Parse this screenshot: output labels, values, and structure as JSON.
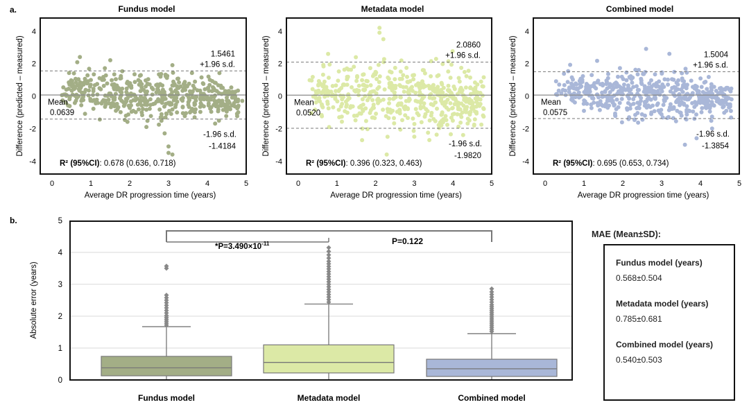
{
  "panel_a_label": "a.",
  "panel_b_label": "b.",
  "bland_altman": {
    "ylabel": "Difference (predicted – measured)",
    "xlabel": "Average DR progression time (years)",
    "xticks": [
      "0",
      "1",
      "2",
      "3",
      "4",
      "5"
    ],
    "yticks": [
      "4",
      "2",
      "0",
      "-2",
      "-4"
    ],
    "mean_label": "Mean",
    "upper_label": "+1.96 s.d.",
    "lower_label": "-1.96 s.d.",
    "r2_label": "R² (95%CI)"
  },
  "chart_data": [
    {
      "type": "scatter",
      "title": "Fundus model",
      "color": "#a3ae86",
      "xlim": [
        0,
        5
      ],
      "ylim": [
        -4.8,
        4.8
      ],
      "mean": 0.0639,
      "mean_text": "0.0639",
      "upper_loa": 1.5461,
      "upper_text": "1.5461",
      "lower_loa": -1.4184,
      "lower_text": "-1.4184",
      "r2_text": ": 0.678 (0.636, 0.718)",
      "seed": 11,
      "spread": 0.78,
      "sample_points": [
        {
          "x": 1.5,
          "y": 2.2
        },
        {
          "x": 3.1,
          "y": 1.9
        },
        {
          "x": 3.0,
          "y": -3.1
        },
        {
          "x": 3.1,
          "y": -3.6
        },
        {
          "x": 3.0,
          "y": -3.5
        },
        {
          "x": 2.9,
          "y": -2.3
        },
        {
          "x": 4.2,
          "y": -1.7
        },
        {
          "x": 4.9,
          "y": -0.3
        }
      ]
    },
    {
      "type": "scatter",
      "title": "Metadata model",
      "color": "#dce9a6",
      "xlim": [
        0,
        5
      ],
      "ylim": [
        -4.8,
        4.8
      ],
      "mean": 0.052,
      "mean_text": "0.0520",
      "upper_loa": 2.086,
      "upper_text": "2.0860",
      "lower_loa": -1.982,
      "lower_text": "-1.9820",
      "r2_text": ": 0.396 (0.323, 0.463)",
      "seed": 23,
      "spread": 1.05,
      "sample_points": [
        {
          "x": 2.1,
          "y": 4.2
        },
        {
          "x": 2.1,
          "y": 3.9
        },
        {
          "x": 2.2,
          "y": 3.5
        },
        {
          "x": 3.0,
          "y": -2.5
        },
        {
          "x": 3.7,
          "y": -1.8
        },
        {
          "x": 4.7,
          "y": -0.2
        }
      ]
    },
    {
      "type": "scatter",
      "title": "Combined model",
      "color": "#a9b7d8",
      "xlim": [
        0,
        5
      ],
      "ylim": [
        -4.8,
        4.8
      ],
      "mean": 0.0575,
      "mean_text": "0.0575",
      "upper_loa": 1.5004,
      "upper_text": "1.5004",
      "lower_loa": -1.3854,
      "lower_text": "-1.3854",
      "r2_text": ": 0.695 (0.653, 0.734)",
      "seed": 37,
      "spread": 0.72,
      "sample_points": [
        {
          "x": 2.6,
          "y": 2.9
        },
        {
          "x": 3.2,
          "y": 2.6
        },
        {
          "x": 3.6,
          "y": -3.0
        },
        {
          "x": 3.9,
          "y": -2.6
        },
        {
          "x": 4.3,
          "y": -2.0
        },
        {
          "x": 4.8,
          "y": -0.2
        }
      ]
    },
    {
      "type": "box",
      "ylabel": "Absolute error (years)",
      "ylim": [
        0,
        5
      ],
      "yticks": [
        "0",
        "1",
        "2",
        "3",
        "4",
        "5"
      ],
      "categories": [
        "Fundus model",
        "Metadata model",
        "Combined model"
      ],
      "colors": [
        "#a3ae86",
        "#dce9a6",
        "#a9b7d8"
      ],
      "boxes": [
        {
          "q1": 0.13,
          "median": 0.38,
          "q3": 0.74,
          "whisker_low": 0,
          "whisker_high": 1.67,
          "outliers": [
            1.72,
            1.78,
            1.84,
            1.9,
            1.96,
            2.02,
            2.1,
            2.18,
            2.26,
            2.34,
            2.42,
            2.5,
            2.58,
            2.66,
            3.5,
            3.57
          ]
        },
        {
          "q1": 0.22,
          "median": 0.55,
          "q3": 1.1,
          "whisker_low": 0,
          "whisker_high": 2.38,
          "outliers": [
            2.44,
            2.52,
            2.6,
            2.68,
            2.76,
            2.84,
            2.92,
            3.0,
            3.08,
            3.16,
            3.24,
            3.32,
            3.4,
            3.48,
            3.56,
            3.64,
            3.72,
            3.82,
            3.92,
            4.03,
            4.15
          ]
        },
        {
          "q1": 0.11,
          "median": 0.35,
          "q3": 0.65,
          "whisker_low": 0,
          "whisker_high": 1.45,
          "outliers": [
            1.52,
            1.58,
            1.64,
            1.7,
            1.76,
            1.82,
            1.88,
            1.94,
            2.0,
            2.06,
            2.12,
            2.18,
            2.24,
            2.3,
            2.36,
            2.44,
            2.52,
            2.6,
            2.68,
            2.76,
            2.86
          ]
        }
      ],
      "comparisons": [
        {
          "from": 0,
          "to": 1,
          "label": "*P=3.490×10",
          "exponent": "-11"
        },
        {
          "from": 0,
          "to": 2,
          "label": "P=0.122"
        }
      ]
    }
  ],
  "mae": {
    "title": "MAE (Mean±SD):",
    "items": [
      {
        "label": "Fundus model (years)",
        "value": "0.568±0.504"
      },
      {
        "label": "Metadata model  (years)",
        "value": "0.785±0.681"
      },
      {
        "label": "Combined  model (years)",
        "value": "0.540±0.503"
      }
    ]
  }
}
